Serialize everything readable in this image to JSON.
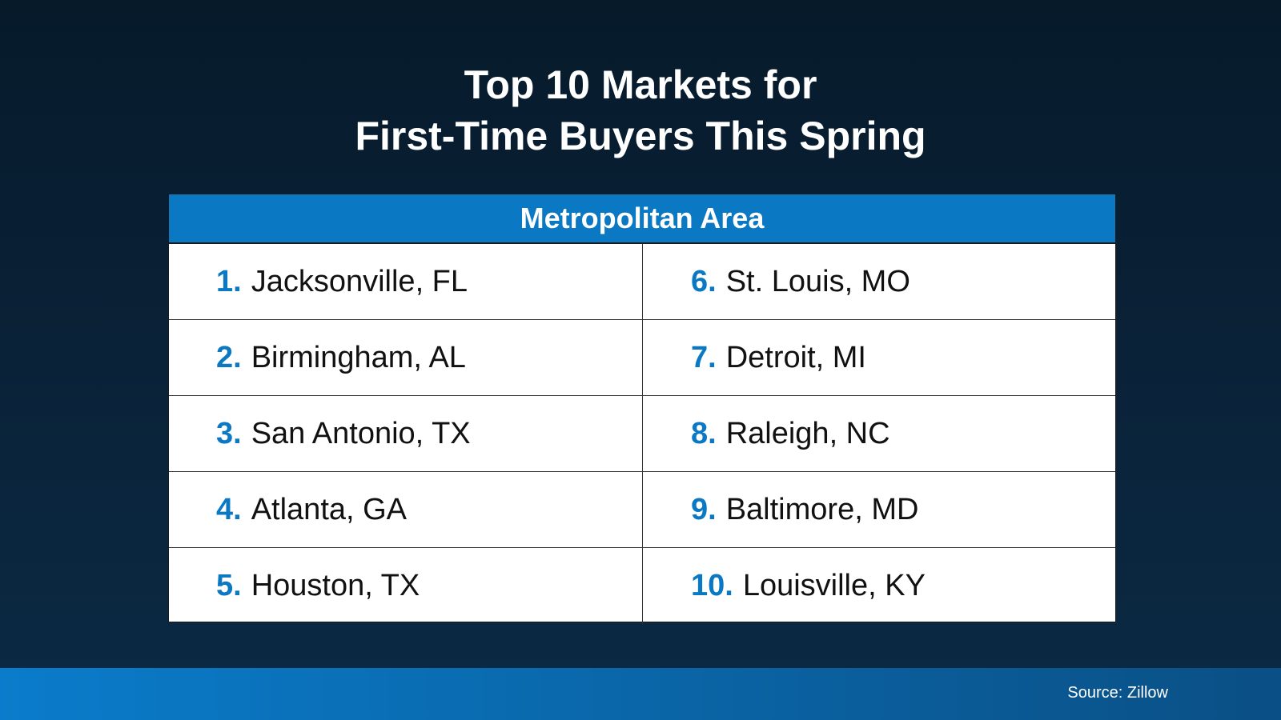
{
  "title": [
    "Top 10 Markets for",
    "First-Time Buyers This Spring"
  ],
  "table": {
    "header": "Metropolitan Area",
    "rows": [
      [
        {
          "rank": "1.",
          "name": "Jacksonville, FL"
        },
        {
          "rank": "6.",
          "name": "St. Louis, MO"
        }
      ],
      [
        {
          "rank": "2.",
          "name": "Birmingham, AL"
        },
        {
          "rank": "7.",
          "name": "Detroit, MI"
        }
      ],
      [
        {
          "rank": "3.",
          "name": "San Antonio, TX"
        },
        {
          "rank": "8.",
          "name": "Raleigh, NC"
        }
      ],
      [
        {
          "rank": "4.",
          "name": "Atlanta, GA"
        },
        {
          "rank": "9.",
          "name": "Baltimore, MD"
        }
      ],
      [
        {
          "rank": "5.",
          "name": "Houston, TX"
        },
        {
          "rank": "10.",
          "name": "Louisville, KY"
        }
      ]
    ]
  },
  "footer": {
    "source": "Source: Zillow"
  }
}
